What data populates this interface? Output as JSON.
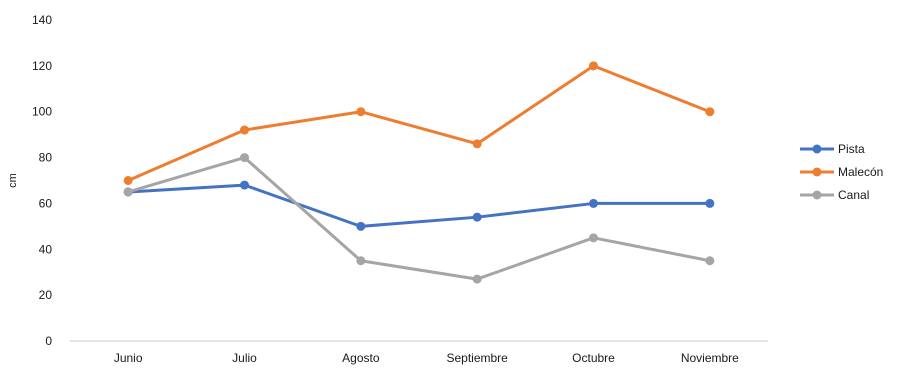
{
  "chart_data": {
    "type": "line",
    "title": "",
    "xlabel": "",
    "ylabel": "cm",
    "ylim": [
      0,
      140
    ],
    "yticks": [
      0,
      20,
      40,
      60,
      80,
      100,
      120,
      140
    ],
    "grid": false,
    "legend_position": "right",
    "categories": [
      "Junio",
      "Julio",
      "Agosto",
      "Septiembre",
      "Octubre",
      "Noviembre"
    ],
    "series": [
      {
        "name": "Pista",
        "color": "#4472C4",
        "values": [
          65,
          68,
          50,
          54,
          60,
          60
        ]
      },
      {
        "name": "Malecón",
        "color": "#ED7D31",
        "values": [
          70,
          92,
          100,
          86,
          120,
          100
        ]
      },
      {
        "name": "Canal",
        "color": "#A5A5A5",
        "values": [
          65,
          80,
          35,
          27,
          45,
          35
        ]
      }
    ]
  }
}
